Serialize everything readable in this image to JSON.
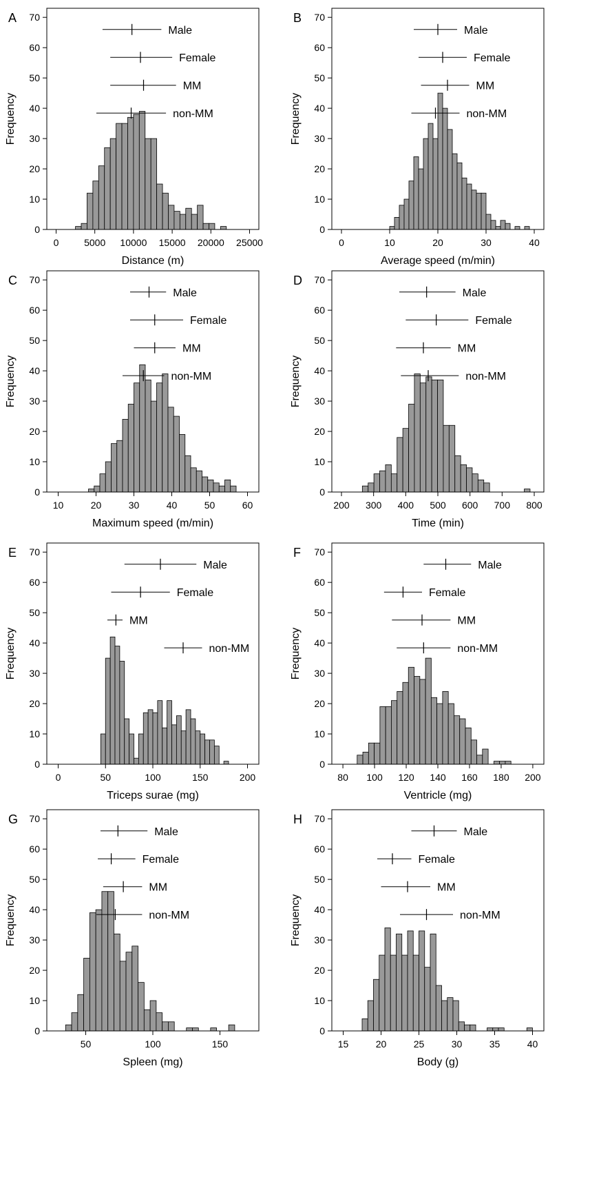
{
  "y_label": "Frequency",
  "chart_data": [
    {
      "panel": "A",
      "type": "bar",
      "xlabel": "Distance (m)",
      "ylabel": "Frequency",
      "xlim": [
        -1200,
        26200
      ],
      "ylim": [
        0,
        73
      ],
      "xticks": [
        0,
        5000,
        10000,
        15000,
        20000,
        25000
      ],
      "yticks": [
        0,
        10,
        20,
        30,
        40,
        50,
        60,
        70
      ],
      "bin_start": 2500,
      "bin_width": 750,
      "values": [
        1,
        2,
        12,
        16,
        21,
        27,
        30,
        35,
        35,
        37,
        38,
        39,
        30,
        30,
        15,
        12,
        8,
        6,
        5,
        7,
        5,
        8,
        2,
        2,
        0,
        1
      ],
      "summary": [
        {
          "label": "Male",
          "mean": 9800,
          "low": 6000,
          "high": 13600
        },
        {
          "label": "Female",
          "mean": 10900,
          "low": 7000,
          "high": 15000
        },
        {
          "label": "MM",
          "mean": 11300,
          "low": 7000,
          "high": 15500
        },
        {
          "label": "non-MM",
          "mean": 9700,
          "low": 5200,
          "high": 14200
        }
      ]
    },
    {
      "panel": "B",
      "type": "bar",
      "xlabel": "Average speed (m/min)",
      "ylabel": "Frequency",
      "xlim": [
        -2,
        42
      ],
      "ylim": [
        0,
        73
      ],
      "xticks": [
        0,
        10,
        20,
        30,
        40
      ],
      "yticks": [
        0,
        10,
        20,
        30,
        40,
        50,
        60,
        70
      ],
      "bin_start": 10,
      "bin_width": 1,
      "values": [
        1,
        4,
        8,
        10,
        16,
        24,
        20,
        30,
        35,
        30,
        45,
        40,
        33,
        25,
        22,
        17,
        15,
        13,
        12,
        12,
        5,
        3,
        1,
        3,
        2,
        0,
        1,
        0,
        1
      ],
      "summary": [
        {
          "label": "Male",
          "mean": 20,
          "low": 15,
          "high": 24
        },
        {
          "label": "Female",
          "mean": 21,
          "low": 16,
          "high": 26
        },
        {
          "label": "MM",
          "mean": 22,
          "low": 16.5,
          "high": 26.5
        },
        {
          "label": "non-MM",
          "mean": 19.5,
          "low": 14.5,
          "high": 24.5
        }
      ]
    },
    {
      "panel": "C",
      "type": "bar",
      "xlabel": "Maximum speed (m/min)",
      "ylabel": "Frequency",
      "xlim": [
        7,
        63
      ],
      "ylim": [
        0,
        73
      ],
      "xticks": [
        10,
        20,
        30,
        40,
        50,
        60
      ],
      "yticks": [
        0,
        10,
        20,
        30,
        40,
        50,
        60,
        70
      ],
      "bin_start": 18,
      "bin_width": 1.5,
      "values": [
        1,
        2,
        6,
        10,
        16,
        17,
        24,
        29,
        36,
        42,
        37,
        30,
        36,
        39,
        28,
        25,
        19,
        12,
        8,
        7,
        5,
        4,
        3,
        2,
        4,
        2
      ],
      "summary": [
        {
          "label": "Male",
          "mean": 34,
          "low": 29,
          "high": 38.5
        },
        {
          "label": "Female",
          "mean": 35.5,
          "low": 29,
          "high": 43
        },
        {
          "label": "MM",
          "mean": 35.5,
          "low": 30,
          "high": 41
        },
        {
          "label": "non-MM",
          "mean": 32.5,
          "low": 27,
          "high": 38
        }
      ]
    },
    {
      "panel": "D",
      "type": "bar",
      "xlabel": "Time (min)",
      "ylabel": "Frequency",
      "xlim": [
        170,
        830
      ],
      "ylim": [
        0,
        73
      ],
      "xticks": [
        200,
        300,
        400,
        500,
        600,
        700,
        800
      ],
      "yticks": [
        0,
        10,
        20,
        30,
        40,
        50,
        60,
        70
      ],
      "bin_start": 265,
      "bin_width": 18,
      "values": [
        2,
        3,
        6,
        7,
        9,
        6,
        18,
        21,
        29,
        39,
        36,
        38,
        37,
        37,
        22,
        22,
        12,
        9,
        8,
        6,
        4,
        3,
        0,
        0,
        0,
        0,
        0,
        0,
        1
      ],
      "summary": [
        {
          "label": "Male",
          "mean": 465,
          "low": 380,
          "high": 555
        },
        {
          "label": "Female",
          "mean": 495,
          "low": 400,
          "high": 595
        },
        {
          "label": "MM",
          "mean": 455,
          "low": 370,
          "high": 540
        },
        {
          "label": "non-MM",
          "mean": 470,
          "low": 385,
          "high": 565
        }
      ]
    },
    {
      "panel": "E",
      "type": "bar",
      "xlabel": "Triceps surae (mg)",
      "ylabel": "Frequency",
      "xlim": [
        -12,
        212
      ],
      "ylim": [
        0,
        73
      ],
      "xticks": [
        0,
        50,
        100,
        150,
        200
      ],
      "yticks": [
        0,
        10,
        20,
        30,
        40,
        50,
        60,
        70
      ],
      "bin_start": 45,
      "bin_width": 5,
      "values": [
        10,
        35,
        42,
        39,
        34,
        15,
        10,
        2,
        10,
        17,
        18,
        17,
        21,
        12,
        21,
        13,
        16,
        11,
        18,
        15,
        11,
        10,
        8,
        8,
        6,
        0,
        1
      ],
      "summary": [
        {
          "label": "Male",
          "mean": 108,
          "low": 70,
          "high": 146
        },
        {
          "label": "Female",
          "mean": 87,
          "low": 56,
          "high": 118
        },
        {
          "label": "MM",
          "mean": 61,
          "low": 52,
          "high": 68
        },
        {
          "label": "non-MM",
          "mean": 132,
          "low": 112,
          "high": 152
        }
      ]
    },
    {
      "panel": "F",
      "type": "bar",
      "xlabel": "Ventricle (mg)",
      "ylabel": "Frequency",
      "xlim": [
        73,
        207
      ],
      "ylim": [
        0,
        73
      ],
      "xticks": [
        80,
        100,
        120,
        140,
        160,
        180,
        200
      ],
      "yticks": [
        0,
        10,
        20,
        30,
        40,
        50,
        60,
        70
      ],
      "bin_start": 89,
      "bin_width": 3.6,
      "values": [
        3,
        4,
        7,
        7,
        19,
        19,
        21,
        24,
        27,
        32,
        29,
        28,
        35,
        22,
        20,
        24,
        20,
        16,
        15,
        12,
        8,
        3,
        5,
        0,
        1,
        1,
        1
      ],
      "summary": [
        {
          "label": "Male",
          "mean": 145,
          "low": 131,
          "high": 161
        },
        {
          "label": "Female",
          "mean": 118,
          "low": 106,
          "high": 130
        },
        {
          "label": "MM",
          "mean": 130,
          "low": 111,
          "high": 148
        },
        {
          "label": "non-MM",
          "mean": 131,
          "low": 114,
          "high": 148
        }
      ]
    },
    {
      "panel": "G",
      "type": "bar",
      "xlabel": "Spleen (mg)",
      "ylabel": "Frequency",
      "xlim": [
        21,
        179
      ],
      "ylim": [
        0,
        73
      ],
      "xticks": [
        50,
        100,
        150
      ],
      "yticks": [
        0,
        10,
        20,
        30,
        40,
        50,
        60,
        70
      ],
      "bin_start": 35,
      "bin_width": 4.5,
      "values": [
        2,
        6,
        12,
        24,
        39,
        40,
        46,
        46,
        32,
        23,
        26,
        28,
        16,
        7,
        10,
        6,
        3,
        3,
        0,
        0,
        1,
        1,
        0,
        0,
        1,
        0,
        0,
        2
      ],
      "summary": [
        {
          "label": "Male",
          "mean": 74,
          "low": 61,
          "high": 96
        },
        {
          "label": "Female",
          "mean": 69,
          "low": 59,
          "high": 87
        },
        {
          "label": "MM",
          "mean": 78,
          "low": 63,
          "high": 92
        },
        {
          "label": "non-MM",
          "mean": 72,
          "low": 58,
          "high": 92
        }
      ]
    },
    {
      "panel": "H",
      "type": "bar",
      "xlabel": "Body (g)",
      "ylabel": "Frequency",
      "xlim": [
        13.5,
        41.5
      ],
      "ylim": [
        0,
        73
      ],
      "xticks": [
        15,
        20,
        25,
        30,
        35,
        40
      ],
      "yticks": [
        0,
        10,
        20,
        30,
        40,
        50,
        60,
        70
      ],
      "bin_start": 17.5,
      "bin_width": 0.75,
      "values": [
        4,
        10,
        17,
        25,
        34,
        25,
        32,
        25,
        33,
        25,
        33,
        21,
        32,
        15,
        10,
        11,
        10,
        3,
        2,
        2,
        0,
        0,
        1,
        1,
        1,
        0,
        0,
        0,
        0,
        1
      ],
      "summary": [
        {
          "label": "Male",
          "mean": 27,
          "low": 24,
          "high": 30
        },
        {
          "label": "Female",
          "mean": 21.5,
          "low": 19.5,
          "high": 24
        },
        {
          "label": "MM",
          "mean": 23.5,
          "low": 20,
          "high": 26.5
        },
        {
          "label": "non-MM",
          "mean": 26,
          "low": 22.5,
          "high": 29.5
        }
      ]
    }
  ]
}
